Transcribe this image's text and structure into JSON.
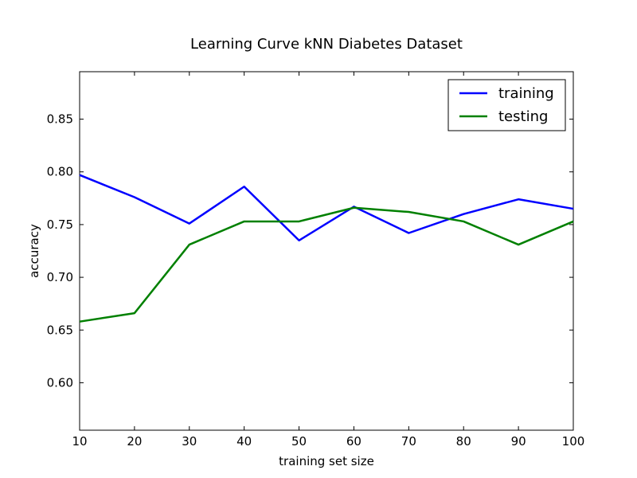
{
  "chart_data": {
    "type": "line",
    "title": "Learning Curve kNN Diabetes Dataset",
    "xlabel": "training set size",
    "ylabel": "accuracy",
    "xlim": [
      10,
      100
    ],
    "ylim": [
      0.555,
      0.895
    ],
    "x_ticks": [
      10,
      20,
      30,
      40,
      50,
      60,
      70,
      80,
      90,
      100
    ],
    "x_tick_labels": [
      "10",
      "20",
      "30",
      "40",
      "50",
      "60",
      "70",
      "80",
      "90",
      "100"
    ],
    "y_ticks": [
      0.6,
      0.65,
      0.7,
      0.75,
      0.8,
      0.85
    ],
    "y_tick_labels": [
      "0.60",
      "0.65",
      "0.70",
      "0.75",
      "0.80",
      "0.85"
    ],
    "grid": false,
    "legend_position": "top-right",
    "x": [
      10,
      20,
      30,
      40,
      50,
      60,
      70,
      80,
      90,
      100
    ],
    "series": [
      {
        "name": "training",
        "color": "#0000ff",
        "values": [
          0.797,
          0.776,
          0.751,
          0.786,
          0.735,
          0.767,
          0.742,
          0.76,
          0.774,
          0.765
        ]
      },
      {
        "name": "testing",
        "color": "#008000",
        "values": [
          0.658,
          0.666,
          0.731,
          0.753,
          0.753,
          0.766,
          0.762,
          0.753,
          0.731,
          0.753
        ]
      }
    ]
  }
}
